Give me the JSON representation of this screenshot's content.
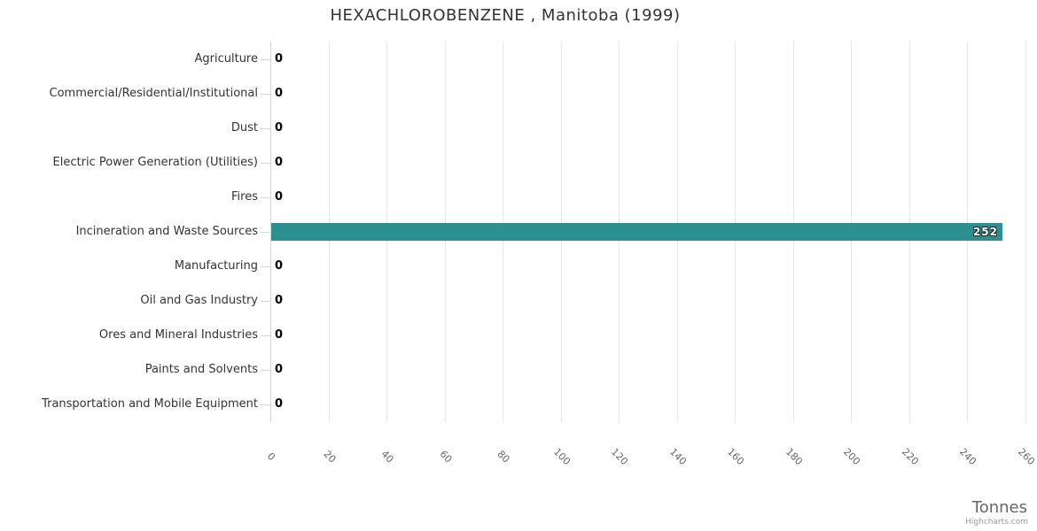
{
  "title": "HEXACHLOROBENZENE , Manitoba (1999)",
  "credits": "Highcharts.com",
  "colors": {
    "bar": "#2b908f",
    "title_text": "#333333",
    "category_text": "#333333",
    "tick_text": "#666666",
    "axis_line": "#ccd6eb",
    "gridline": "#e6e6e6",
    "axis_title_text": "#666666",
    "credits_text": "#999999",
    "data_label_zero": "#000000",
    "data_label_inside": "#ffffff"
  },
  "chart_data": {
    "type": "bar",
    "title": "HEXACHLOROBENZENE , Manitoba (1999)",
    "categories": [
      "Agriculture",
      "Commercial/Residential/Institutional",
      "Dust",
      "Electric Power Generation (Utilities)",
      "Fires",
      "Incineration and Waste Sources",
      "Manufacturing",
      "Oil and Gas Industry",
      "Ores and Mineral Industries",
      "Paints and Solvents",
      "Transportation and Mobile Equipment"
    ],
    "values": [
      0,
      0,
      0,
      0,
      0,
      252,
      0,
      0,
      0,
      0,
      0
    ],
    "xlabel": "Tonnes",
    "ylabel": "",
    "ylim": [
      0,
      260
    ],
    "axis_ticks": [
      0,
      20,
      40,
      60,
      80,
      100,
      120,
      140,
      160,
      180,
      200,
      220,
      240,
      260
    ],
    "tick_label_rotation": 45,
    "grid": true,
    "legend": "none"
  }
}
